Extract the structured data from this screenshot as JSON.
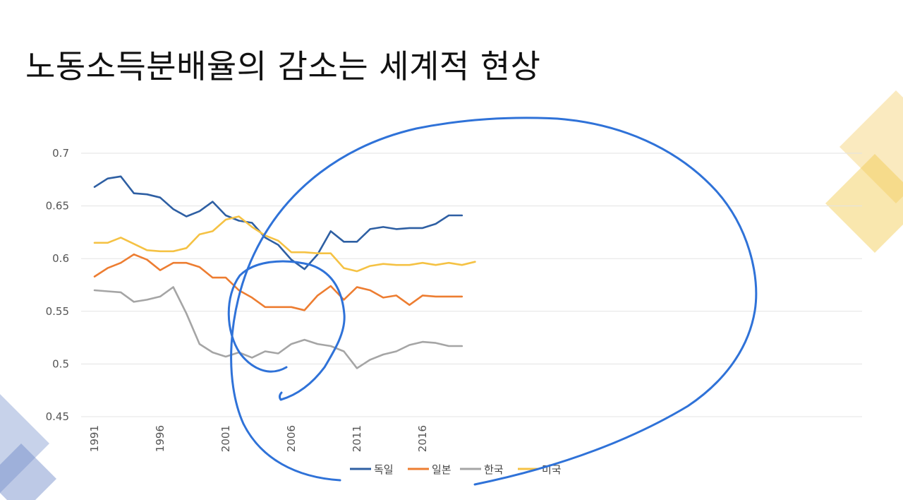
{
  "slide": {
    "title": "노동소득분배율의 감소는 세계적 현상"
  },
  "chart_data": {
    "type": "line",
    "title": "",
    "xlabel": "",
    "ylabel": "",
    "x": [
      1991,
      1992,
      1993,
      1994,
      1995,
      1996,
      1997,
      1998,
      1999,
      2000,
      2001,
      2002,
      2003,
      2004,
      2005,
      2006,
      2007,
      2008,
      2009,
      2010,
      2011,
      2012,
      2013,
      2014,
      2015,
      2016,
      2017,
      2018,
      2019,
      2020
    ],
    "x_tick_labels": [
      "1991",
      "1996",
      "2001",
      "2006",
      "2011",
      "2016"
    ],
    "x_tick_values": [
      1991,
      1996,
      2001,
      2006,
      2011,
      2016
    ],
    "ylim": [
      0.45,
      0.7
    ],
    "y_tick_values": [
      0.45,
      0.5,
      0.55,
      0.6,
      0.65,
      0.7
    ],
    "y_tick_labels": [
      "0.45",
      "0.5",
      "0.55",
      "0.6",
      "0.65",
      "0.7"
    ],
    "grid": true,
    "legend_position": "bottom",
    "series": [
      {
        "name": "독일",
        "color": "#2e5fa3",
        "values": [
          0.668,
          0.676,
          0.678,
          0.662,
          0.661,
          0.658,
          0.647,
          0.64,
          0.645,
          0.654,
          0.641,
          0.636,
          0.634,
          0.62,
          0.613,
          0.599,
          0.59,
          0.604,
          0.626,
          0.616,
          0.616,
          0.628,
          0.63,
          0.628,
          0.629,
          0.629,
          0.633,
          0.641,
          0.641,
          null
        ]
      },
      {
        "name": "일본",
        "color": "#ed7d31",
        "values": [
          0.583,
          0.591,
          0.596,
          0.604,
          0.599,
          0.589,
          0.596,
          0.596,
          0.592,
          0.582,
          0.582,
          0.57,
          0.563,
          0.554,
          0.554,
          0.554,
          0.551,
          0.565,
          0.574,
          0.561,
          0.573,
          0.57,
          0.563,
          0.565,
          0.556,
          0.565,
          0.564,
          0.564,
          0.564,
          null
        ]
      },
      {
        "name": "한국",
        "color": "#a5a5a5",
        "values": [
          0.57,
          0.569,
          0.568,
          0.559,
          0.561,
          0.564,
          0.573,
          0.548,
          0.519,
          0.511,
          0.507,
          0.511,
          0.506,
          0.512,
          0.51,
          0.519,
          0.523,
          0.519,
          0.517,
          0.512,
          0.496,
          0.504,
          0.509,
          0.512,
          0.518,
          0.521,
          0.52,
          0.517,
          0.517,
          null
        ]
      },
      {
        "name": "미국",
        "color": "#f5c244",
        "values": [
          0.615,
          0.615,
          0.62,
          0.614,
          0.608,
          0.607,
          0.607,
          0.61,
          0.623,
          0.626,
          0.637,
          0.64,
          0.63,
          0.622,
          0.617,
          0.606,
          0.606,
          0.605,
          0.605,
          0.591,
          0.588,
          0.593,
          0.595,
          0.594,
          0.594,
          0.596,
          0.594,
          0.596,
          0.594,
          0.597
        ]
      }
    ]
  }
}
